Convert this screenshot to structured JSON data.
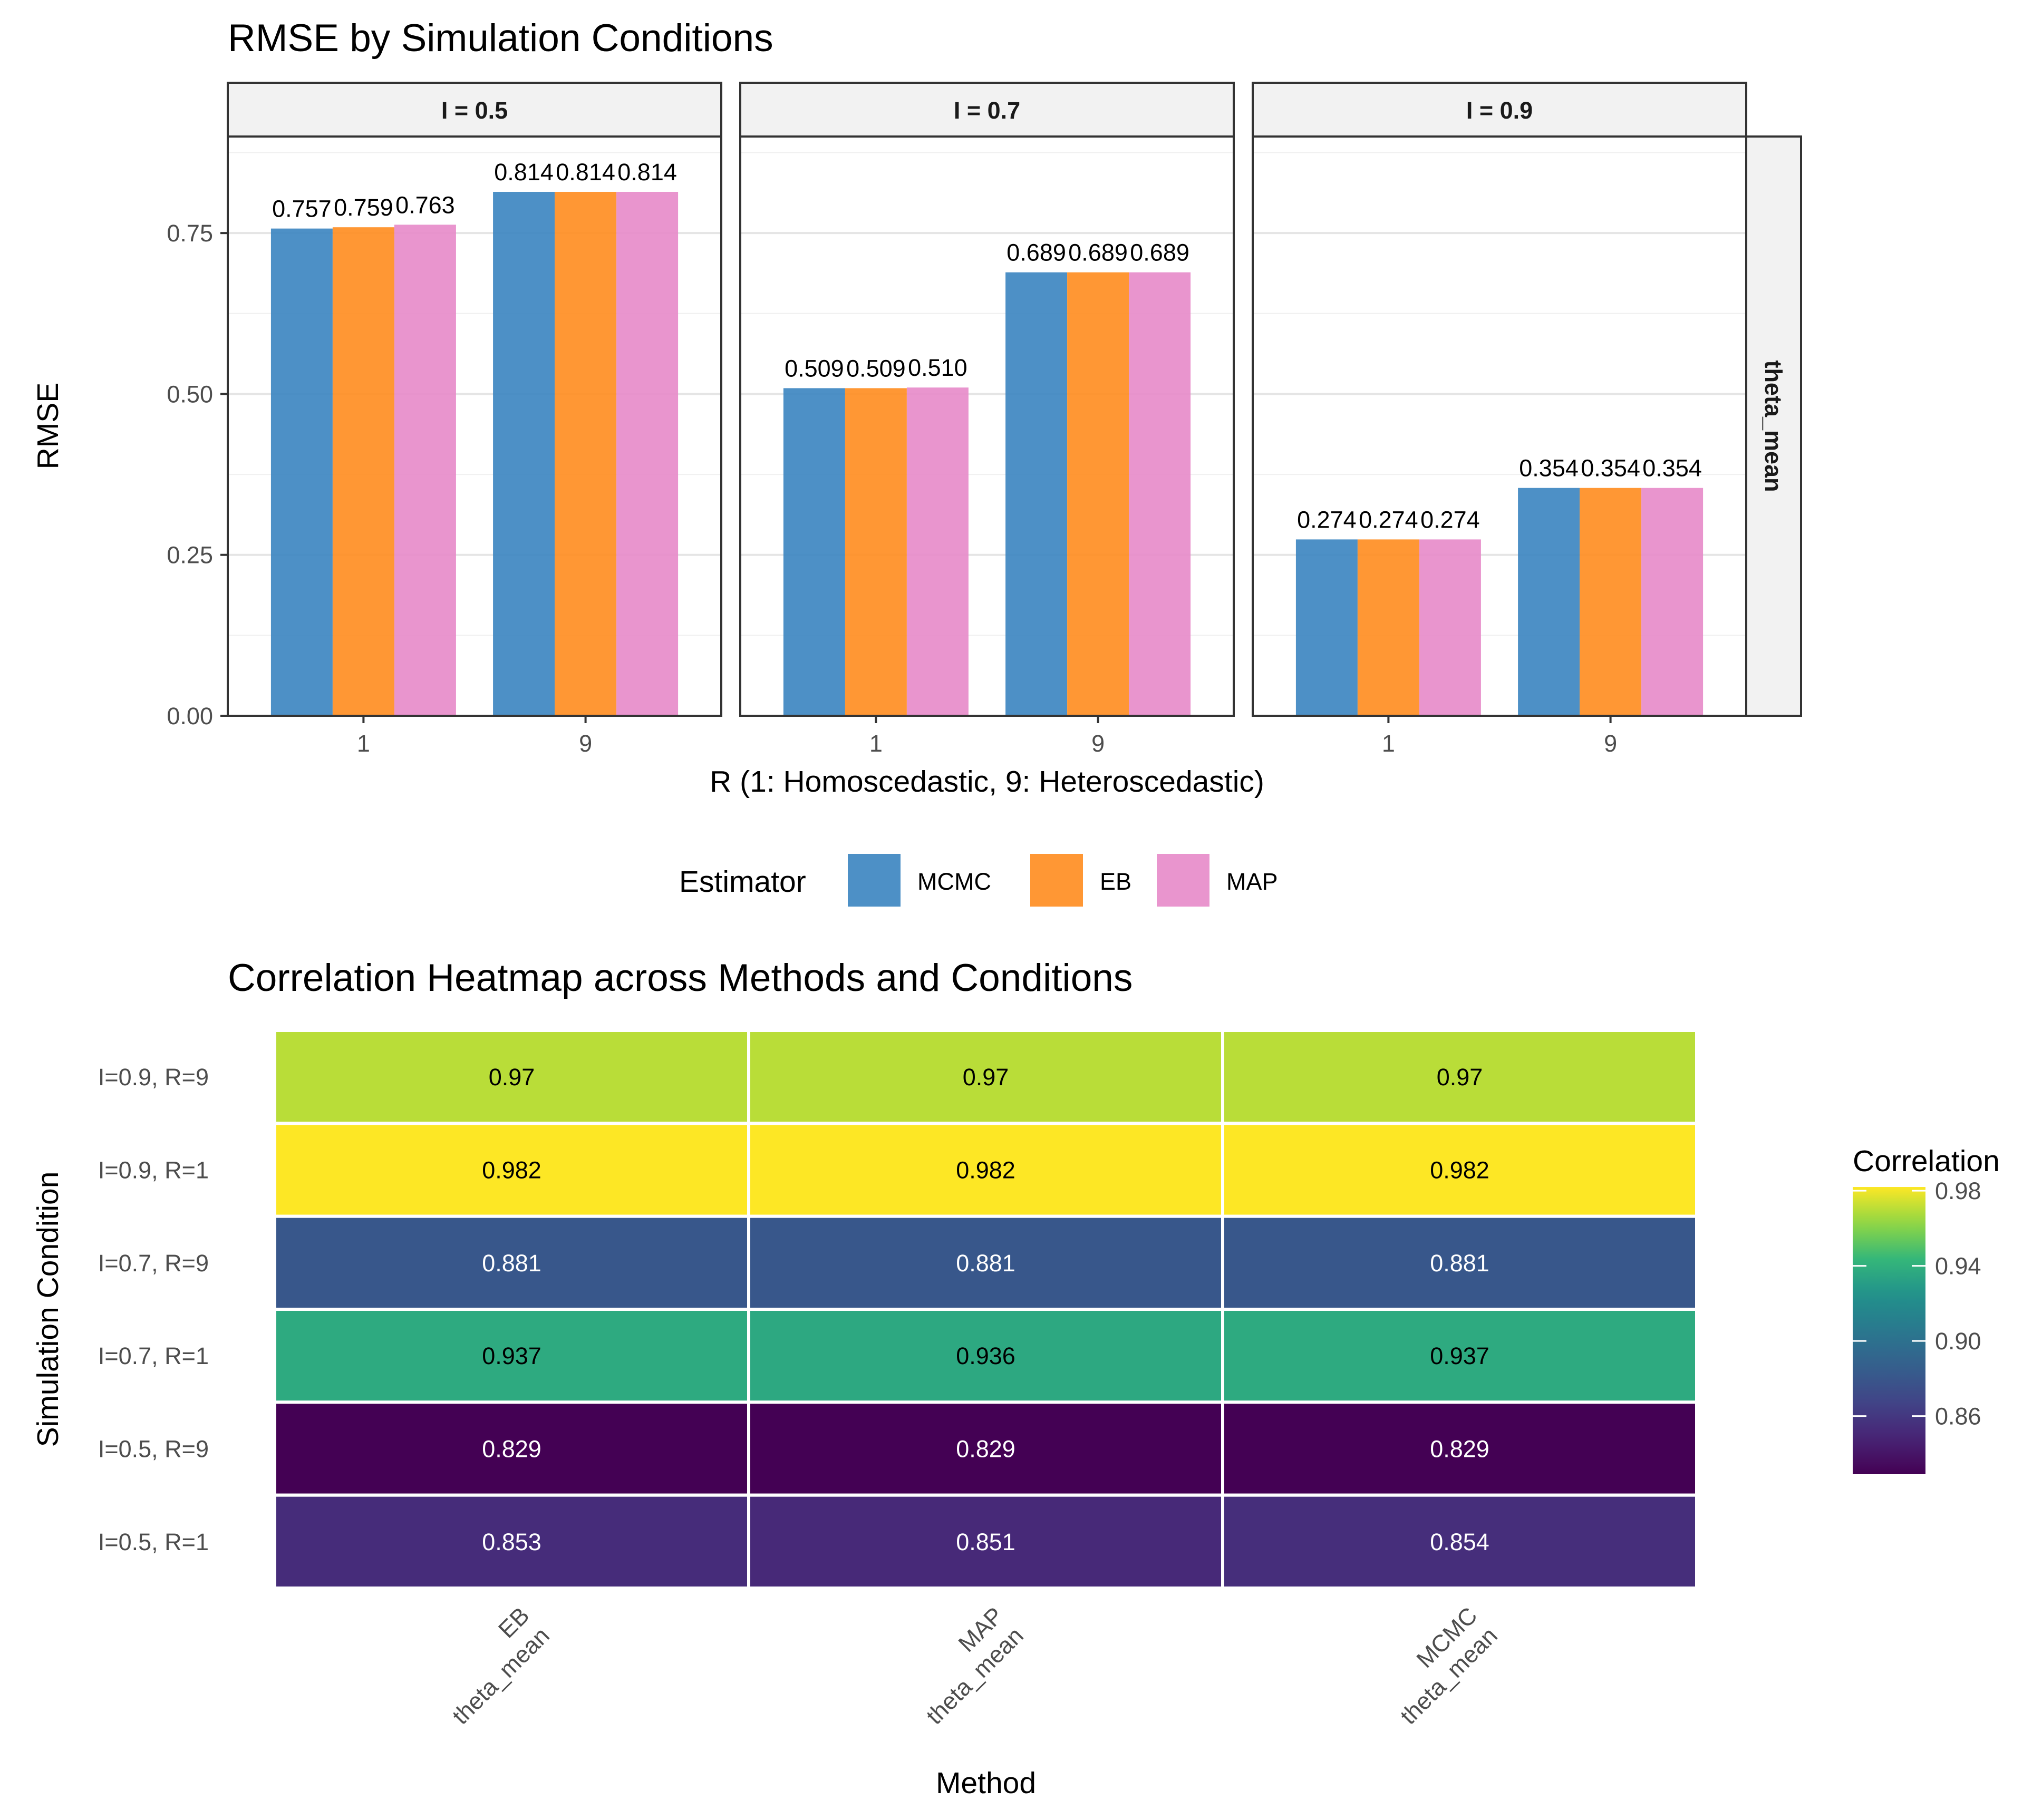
{
  "chart_data": [
    {
      "type": "bar",
      "title": "RMSE by Simulation Conditions",
      "xlabel": "R (1: Homoscedastic, 9: Heteroscedastic)",
      "ylabel": "RMSE",
      "ylim": [
        0,
        0.9
      ],
      "yticks": [
        "0.00",
        "0.25",
        "0.50",
        "0.75"
      ],
      "ytick_values": [
        0,
        0.25,
        0.5,
        0.75
      ],
      "categories": [
        "1",
        "9"
      ],
      "facet_row_label": "theta_mean",
      "legend": {
        "title": "Estimator",
        "position": "bottom",
        "items": [
          "MCMC",
          "EB",
          "MAP"
        ]
      },
      "series_colors": {
        "MCMC": "#3A84C0",
        "EB": "#FF8C1E",
        "MAP": "#E78AC9"
      },
      "facets": [
        {
          "label": "I = 0.5",
          "series": [
            {
              "name": "MCMC",
              "values": [
                0.757,
                0.814
              ],
              "labels": [
                "0.757",
                "0.814"
              ]
            },
            {
              "name": "EB",
              "values": [
                0.759,
                0.814
              ],
              "labels": [
                "0.759",
                "0.814"
              ]
            },
            {
              "name": "MAP",
              "values": [
                0.763,
                0.814
              ],
              "labels": [
                "0.763",
                "0.814"
              ]
            }
          ]
        },
        {
          "label": "I = 0.7",
          "series": [
            {
              "name": "MCMC",
              "values": [
                0.509,
                0.689
              ],
              "labels": [
                "0.509",
                "0.689"
              ]
            },
            {
              "name": "EB",
              "values": [
                0.509,
                0.689
              ],
              "labels": [
                "0.509",
                "0.689"
              ]
            },
            {
              "name": "MAP",
              "values": [
                0.51,
                0.689
              ],
              "labels": [
                "0.510",
                "0.689"
              ]
            }
          ]
        },
        {
          "label": "I = 0.9",
          "series": [
            {
              "name": "MCMC",
              "values": [
                0.274,
                0.354
              ],
              "labels": [
                "0.274",
                "0.354"
              ]
            },
            {
              "name": "EB",
              "values": [
                0.274,
                0.354
              ],
              "labels": [
                "0.274",
                "0.354"
              ]
            },
            {
              "name": "MAP",
              "values": [
                0.274,
                0.354
              ],
              "labels": [
                "0.274",
                "0.354"
              ]
            }
          ]
        }
      ]
    },
    {
      "type": "heatmap",
      "title": "Correlation Heatmap across Methods and Conditions",
      "xlabel": "Method",
      "ylabel": "Simulation Condition",
      "x_labels": [
        [
          "EB",
          "theta_mean"
        ],
        [
          "MAP",
          "theta_mean"
        ],
        [
          "MCMC",
          "theta_mean"
        ]
      ],
      "y_labels": [
        "I=0.9, R=9",
        "I=0.9, R=1",
        "I=0.7, R=9",
        "I=0.7, R=1",
        "I=0.5, R=9",
        "I=0.5, R=1"
      ],
      "values": [
        [
          0.97,
          0.97,
          0.97
        ],
        [
          0.982,
          0.982,
          0.982
        ],
        [
          0.881,
          0.881,
          0.881
        ],
        [
          0.937,
          0.936,
          0.937
        ],
        [
          0.829,
          0.829,
          0.829
        ],
        [
          0.853,
          0.851,
          0.854
        ]
      ],
      "cell_labels": [
        [
          "0.97",
          "0.97",
          "0.97"
        ],
        [
          "0.982",
          "0.982",
          "0.982"
        ],
        [
          "0.881",
          "0.881",
          "0.881"
        ],
        [
          "0.937",
          "0.936",
          "0.937"
        ],
        [
          "0.829",
          "0.829",
          "0.829"
        ],
        [
          "0.853",
          "0.851",
          "0.854"
        ]
      ],
      "colorbar": {
        "title": "Correlation",
        "range": [
          0.829,
          0.982
        ],
        "ticks": [
          "0.86",
          "0.90",
          "0.94",
          "0.98"
        ],
        "tick_values": [
          0.86,
          0.9,
          0.94,
          0.98
        ],
        "colormap": "viridis"
      }
    }
  ]
}
